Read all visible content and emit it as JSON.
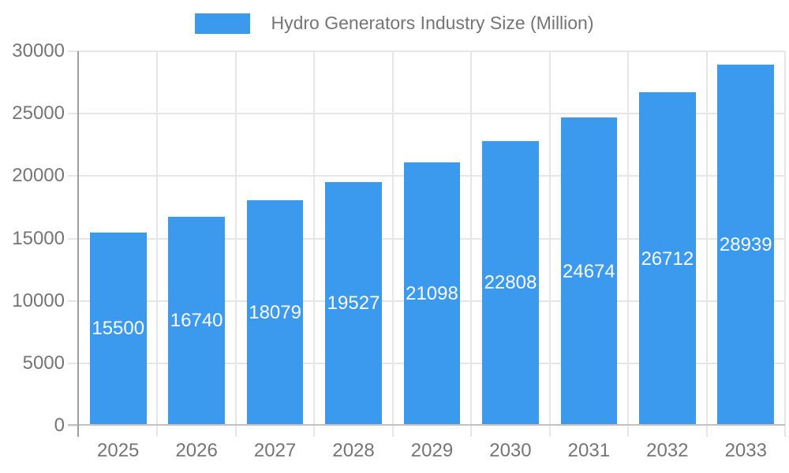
{
  "chart_data": {
    "type": "bar",
    "title": "Hydro Generators Industry Size (Million)",
    "categories": [
      "2025",
      "2026",
      "2027",
      "2028",
      "2029",
      "2030",
      "2031",
      "2032",
      "2033"
    ],
    "values": [
      15500,
      16740,
      18079,
      19527,
      21098,
      22808,
      24674,
      26712,
      28939
    ],
    "xlabel": "",
    "ylabel": "",
    "ylim": [
      0,
      30000
    ],
    "yticks": [
      0,
      5000,
      10000,
      15000,
      20000,
      25000,
      30000
    ],
    "grid": true,
    "legend_position": "top",
    "bar_color": "#3b99ee",
    "value_label_color": "#ffffff",
    "axis_text_color": "#757575",
    "gridline_color": "#e6e6e6",
    "axis_line_color": "#9e9e9e",
    "baseline_color": "#c2c2c2",
    "background_color": "#ffffff"
  }
}
